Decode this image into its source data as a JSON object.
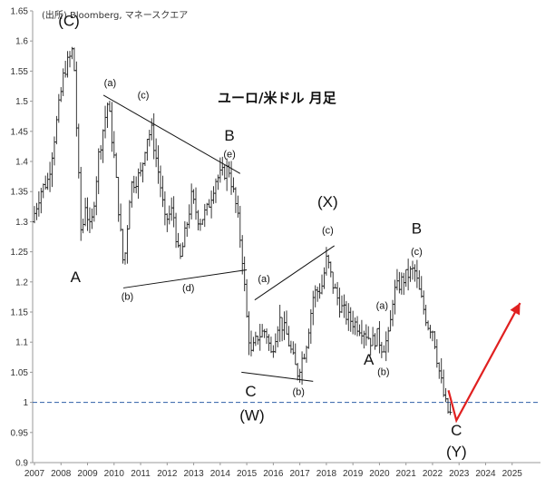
{
  "chart_data": {
    "type": "ohlc",
    "title": "ユーロ/米ドル 月足",
    "source": "(出所) Bloomberg, マネースクエア",
    "xlim": [
      2007,
      2026
    ],
    "ylim": [
      0.9,
      1.65
    ],
    "x_ticks": [
      2007,
      2008,
      2009,
      2010,
      2011,
      2012,
      2013,
      2014,
      2015,
      2016,
      2017,
      2018,
      2019,
      2020,
      2021,
      2022,
      2023,
      2024,
      2025
    ],
    "y_ticks": [
      0.9,
      0.95,
      1,
      1.05,
      1.1,
      1.15,
      1.2,
      1.25,
      1.3,
      1.35,
      1.4,
      1.45,
      1.5,
      1.55,
      1.6,
      1.65
    ],
    "grid": false,
    "reference_line": {
      "y": 1.0,
      "color": "#2e5fa8",
      "style": "dashed"
    },
    "series": [
      {
        "price_path": [
          [
            2007.0,
            1.3
          ],
          [
            2007.3,
            1.35
          ],
          [
            2007.6,
            1.37
          ],
          [
            2007.9,
            1.46
          ],
          [
            2008.2,
            1.55
          ],
          [
            2008.4,
            1.57
          ],
          [
            2008.55,
            1.59
          ],
          [
            2008.7,
            1.42
          ],
          [
            2008.85,
            1.27
          ],
          [
            2009.0,
            1.33
          ],
          [
            2009.2,
            1.28
          ],
          [
            2009.5,
            1.41
          ],
          [
            2009.85,
            1.5
          ],
          [
            2010.1,
            1.4
          ],
          [
            2010.35,
            1.27
          ],
          [
            2010.45,
            1.22
          ],
          [
            2010.7,
            1.36
          ],
          [
            2010.9,
            1.37
          ],
          [
            2011.1,
            1.38
          ],
          [
            2011.3,
            1.44
          ],
          [
            2011.5,
            1.45
          ],
          [
            2011.8,
            1.37
          ],
          [
            2012.0,
            1.3
          ],
          [
            2012.3,
            1.32
          ],
          [
            2012.55,
            1.23
          ],
          [
            2012.8,
            1.29
          ],
          [
            2013.0,
            1.34
          ],
          [
            2013.3,
            1.3
          ],
          [
            2013.6,
            1.32
          ],
          [
            2013.9,
            1.37
          ],
          [
            2014.2,
            1.38
          ],
          [
            2014.4,
            1.39
          ],
          [
            2014.7,
            1.32
          ],
          [
            2014.9,
            1.25
          ],
          [
            2015.1,
            1.13
          ],
          [
            2015.25,
            1.08
          ],
          [
            2015.5,
            1.11
          ],
          [
            2015.8,
            1.12
          ],
          [
            2016.0,
            1.08
          ],
          [
            2016.3,
            1.14
          ],
          [
            2016.6,
            1.11
          ],
          [
            2016.9,
            1.06
          ],
          [
            2017.0,
            1.05
          ],
          [
            2017.3,
            1.09
          ],
          [
            2017.6,
            1.18
          ],
          [
            2017.9,
            1.19
          ],
          [
            2018.1,
            1.24
          ],
          [
            2018.3,
            1.2
          ],
          [
            2018.6,
            1.16
          ],
          [
            2018.9,
            1.14
          ],
          [
            2019.2,
            1.13
          ],
          [
            2019.5,
            1.12
          ],
          [
            2019.8,
            1.1
          ],
          [
            2020.0,
            1.11
          ],
          [
            2020.2,
            1.09
          ],
          [
            2020.45,
            1.11
          ],
          [
            2020.6,
            1.18
          ],
          [
            2020.9,
            1.2
          ],
          [
            2021.1,
            1.21
          ],
          [
            2021.4,
            1.22
          ],
          [
            2021.6,
            1.18
          ],
          [
            2021.9,
            1.13
          ],
          [
            2022.1,
            1.12
          ],
          [
            2022.3,
            1.06
          ],
          [
            2022.55,
            1.0
          ],
          [
            2022.7,
            0.98
          ]
        ]
      }
    ],
    "trend_lines": [
      {
        "points": [
          [
            2009.6,
            1.51
          ],
          [
            2014.75,
            1.38
          ]
        ]
      },
      {
        "points": [
          [
            2010.35,
            1.19
          ],
          [
            2015.0,
            1.22
          ]
        ]
      },
      {
        "points": [
          [
            2015.3,
            1.17
          ],
          [
            2018.3,
            1.26
          ]
        ]
      },
      {
        "points": [
          [
            2014.8,
            1.05
          ],
          [
            2017.5,
            1.035
          ]
        ]
      }
    ],
    "projection": {
      "color": "#e02020",
      "points": [
        [
          2022.6,
          1.02
        ],
        [
          2022.9,
          0.97
        ],
        [
          2025.3,
          1.165
        ]
      ]
    },
    "annotations": [
      {
        "text": "(C)",
        "x": 2008.3,
        "y": 1.625,
        "size": "big"
      },
      {
        "text": "A",
        "x": 2008.55,
        "y": 1.2,
        "size": "big"
      },
      {
        "text": "(a)",
        "x": 2009.85,
        "y": 1.525,
        "size": "small"
      },
      {
        "text": "(c)",
        "x": 2011.1,
        "y": 1.505,
        "size": "small"
      },
      {
        "text": "B",
        "x": 2014.35,
        "y": 1.435,
        "size": "big"
      },
      {
        "text": "(e)",
        "x": 2014.35,
        "y": 1.407,
        "size": "small"
      },
      {
        "text": "(b)",
        "x": 2010.5,
        "y": 1.17,
        "size": "small"
      },
      {
        "text": "(d)",
        "x": 2012.8,
        "y": 1.185,
        "size": "small"
      },
      {
        "text": "(X)",
        "x": 2018.05,
        "y": 1.325,
        "size": "big"
      },
      {
        "text": "(c)",
        "x": 2018.05,
        "y": 1.28,
        "size": "small"
      },
      {
        "text": "(a)",
        "x": 2015.65,
        "y": 1.2,
        "size": "small"
      },
      {
        "text": "C",
        "x": 2015.15,
        "y": 1.01,
        "size": "big"
      },
      {
        "text": "(W)",
        "x": 2015.2,
        "y": 0.97,
        "size": "big"
      },
      {
        "text": "(b)",
        "x": 2016.95,
        "y": 1.012,
        "size": "small"
      },
      {
        "text": "B",
        "x": 2021.4,
        "y": 1.28,
        "size": "big"
      },
      {
        "text": "(c)",
        "x": 2021.4,
        "y": 1.245,
        "size": "small"
      },
      {
        "text": "(a)",
        "x": 2020.1,
        "y": 1.155,
        "size": "small"
      },
      {
        "text": "A",
        "x": 2019.6,
        "y": 1.063,
        "size": "big"
      },
      {
        "text": "(b)",
        "x": 2020.15,
        "y": 1.045,
        "size": "small"
      },
      {
        "text": "C",
        "x": 2022.9,
        "y": 0.945,
        "size": "big"
      },
      {
        "text": "(Y)",
        "x": 2022.9,
        "y": 0.91,
        "size": "big"
      }
    ]
  }
}
